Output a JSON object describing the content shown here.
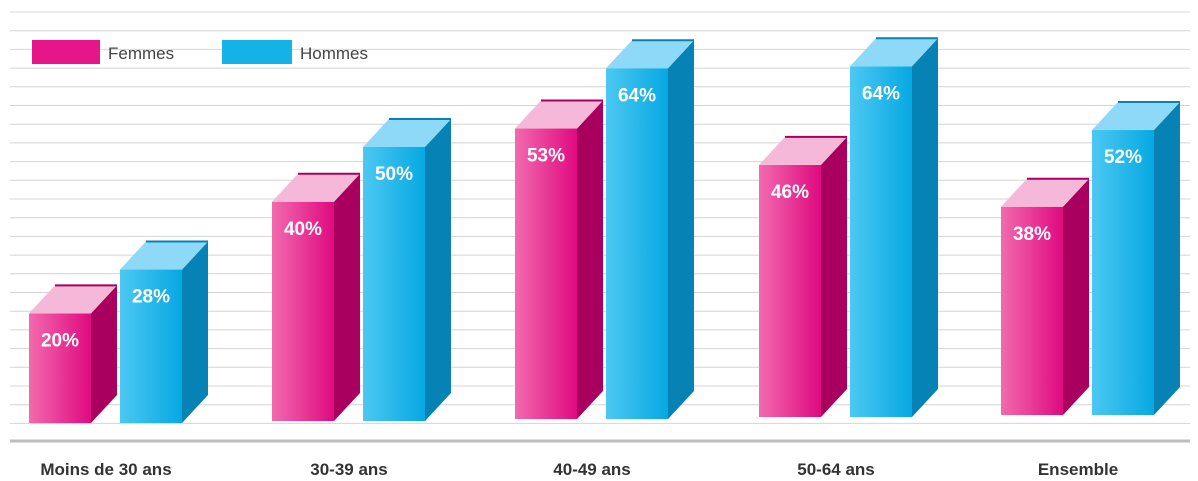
{
  "chart_data": {
    "type": "bar",
    "categories": [
      "Moins de 30 ans",
      "30-39 ans",
      "40-49 ans",
      "50-64 ans",
      "Ensemble"
    ],
    "series": [
      {
        "name": "Femmes",
        "values": [
          20,
          40,
          53,
          46,
          38
        ],
        "labels": [
          "20%",
          "40%",
          "53%",
          "46%",
          "38%"
        ],
        "color": "#e6168a"
      },
      {
        "name": "Hommes",
        "values": [
          28,
          50,
          64,
          64,
          52
        ],
        "labels": [
          "28%",
          "50%",
          "64%",
          "64%",
          "52%"
        ],
        "color": "#13b3e8"
      }
    ],
    "ylim": [
      0,
      70
    ],
    "grid": true,
    "legend": "top-left"
  }
}
